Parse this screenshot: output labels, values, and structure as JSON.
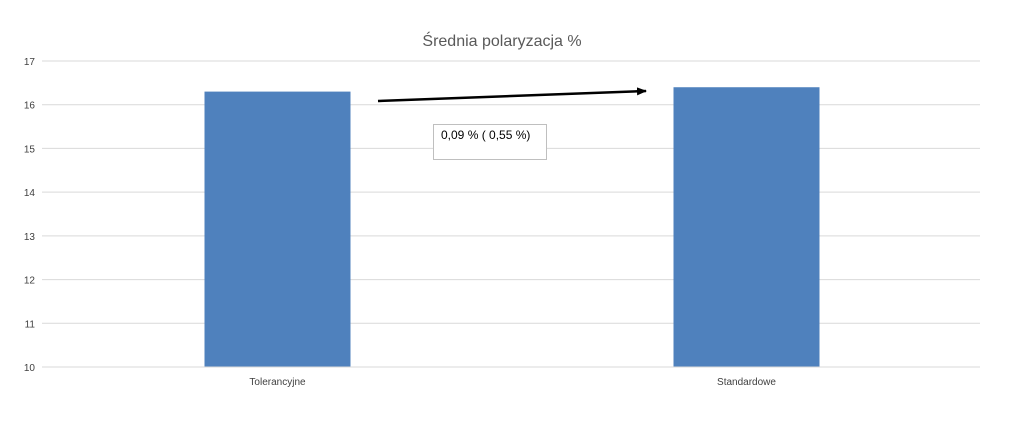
{
  "chart_data": {
    "type": "bar",
    "title": "Średnia polaryzacja %",
    "categories": [
      "Tolerancyjne",
      "Standardowe"
    ],
    "series": [
      {
        "values": [
          16.3,
          16.4
        ]
      }
    ],
    "ylim": [
      10,
      17
    ],
    "yticks": [
      "10",
      "11",
      "12",
      "13",
      "14",
      "15",
      "16",
      "17"
    ],
    "grid": true,
    "legend": "none",
    "bar_color": "#4f81bd",
    "annotation": {
      "text": "0,09 % ( 0,55 %)",
      "arrow": "from Tolerancyjne to Standardowe"
    }
  }
}
